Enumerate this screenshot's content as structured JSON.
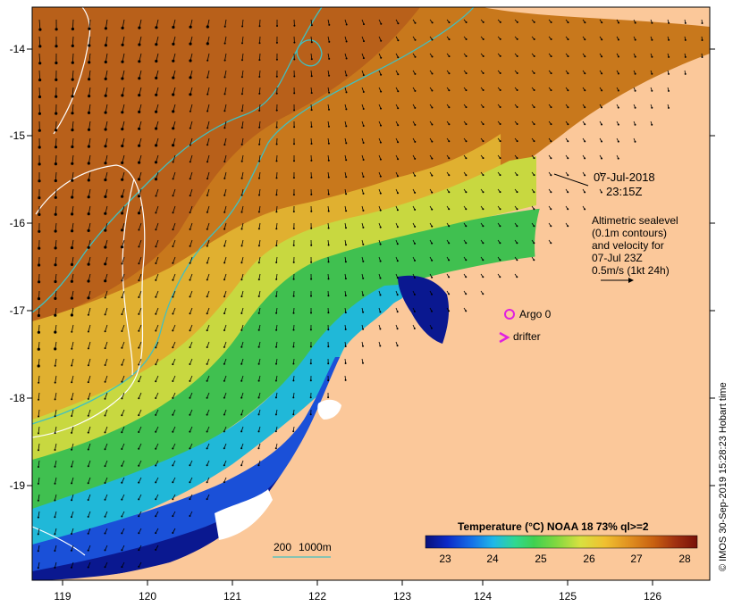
{
  "map": {
    "date": "07-Jul-2018",
    "time": "23:15Z",
    "altimetry_lines": [
      "Altimetric sealevel",
      "(0.1m contours)",
      "and velocity for",
      "07-Jul 23Z",
      "0.5m/s (1kt 24h)"
    ],
    "legend": {
      "argo_label": "Argo 0",
      "drifter_label": "drifter",
      "argo_color": "#e020e0",
      "drifter_color": "#e020e0"
    },
    "depth_legend": {
      "label_200": "200",
      "label_1000": "1000m",
      "line_color": "#40c0c0"
    },
    "colorbar": {
      "title": "Temperature (°C) NOAA 18 73% ql>=2",
      "ticks": [
        "23",
        "24",
        "25",
        "26",
        "27",
        "28"
      ],
      "stops": [
        "#08107a",
        "#0c2ac8",
        "#1470e8",
        "#20b8e8",
        "#30d890",
        "#40d050",
        "#80d840",
        "#d8e040",
        "#f0c030",
        "#e09020",
        "#c86010",
        "#a03010",
        "#781008"
      ]
    },
    "credit": "© IMOS 30-Sep-2019 15:28:23 Hobart time",
    "x_ticks": [
      "119",
      "120",
      "121",
      "122",
      "123",
      "124",
      "125",
      "126"
    ],
    "y_ticks": [
      "-14",
      "-15",
      "-16",
      "-17",
      "-18",
      "-19"
    ],
    "land_color": "#fbc89a"
  }
}
